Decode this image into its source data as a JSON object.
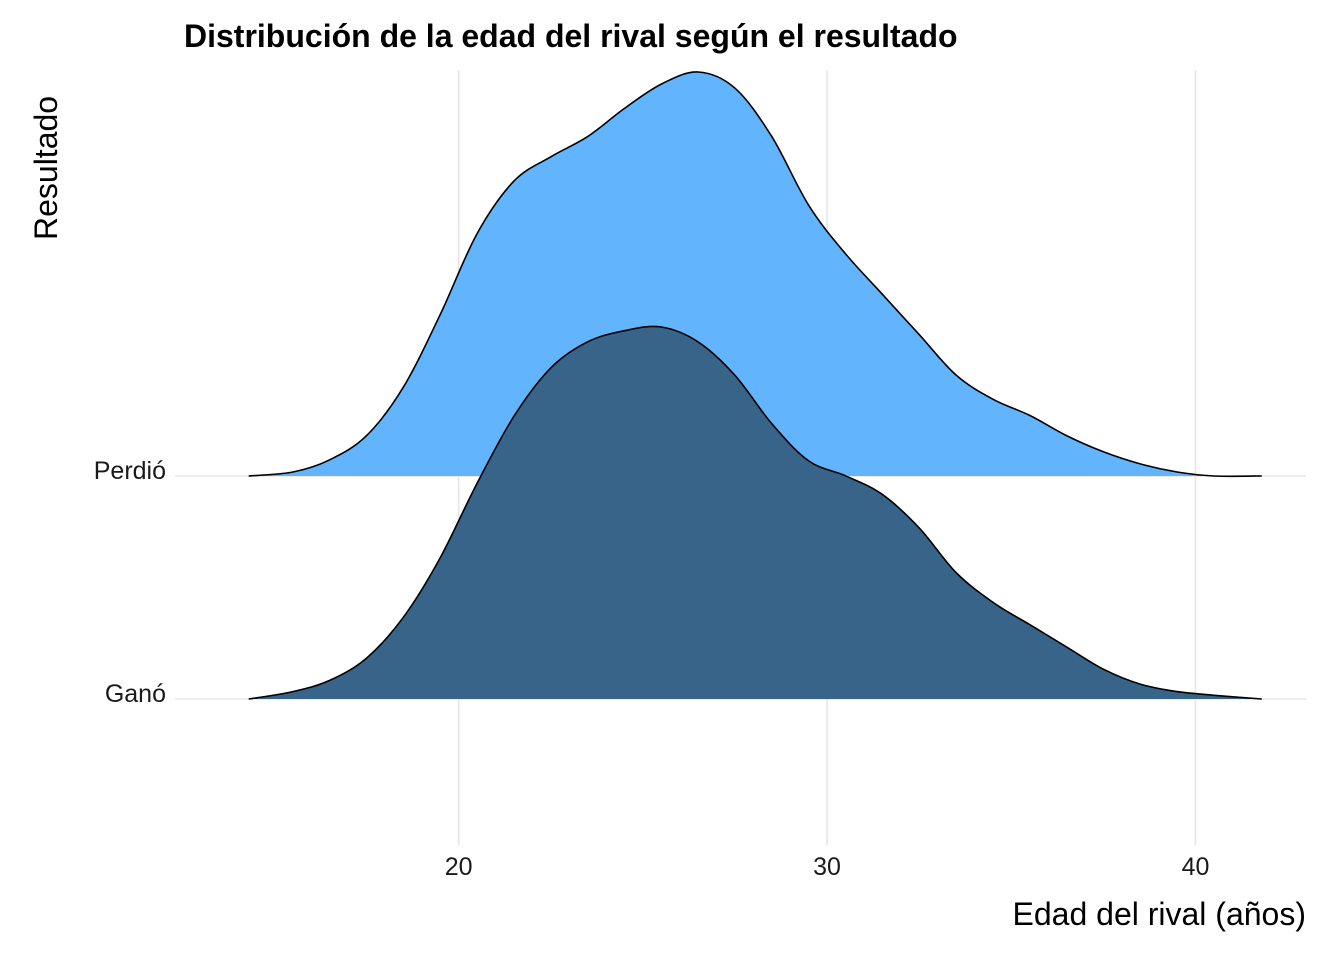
{
  "chart_data": {
    "type": "area",
    "title": "Distribución de la edad del rival según el resultado",
    "xlabel": "Edad del rival (años)",
    "ylabel": "Resultado",
    "xlim": [
      12.3,
      43.0
    ],
    "x_ticks": [
      20,
      30,
      40
    ],
    "x_tick_labels": [
      "20",
      "30",
      "40"
    ],
    "categories": [
      "Ganó",
      "Perdió"
    ],
    "grid": true,
    "legend": "none",
    "series": [
      {
        "name": "Ganó",
        "color": "#386489",
        "x": [
          14.3,
          15.5,
          16.5,
          17.5,
          18.5,
          19.5,
          20.5,
          21.5,
          22.5,
          23.5,
          24.5,
          25.5,
          26.5,
          27.5,
          28.5,
          29.5,
          30.5,
          31.5,
          32.5,
          33.5,
          34.5,
          35.5,
          36.5,
          37.5,
          38.5,
          39.5,
          40.5,
          41.8
        ],
        "y": [
          0.0,
          0.02,
          0.05,
          0.11,
          0.22,
          0.38,
          0.58,
          0.76,
          0.89,
          0.96,
          0.99,
          1.0,
          0.96,
          0.87,
          0.74,
          0.64,
          0.6,
          0.55,
          0.46,
          0.34,
          0.26,
          0.2,
          0.14,
          0.08,
          0.04,
          0.02,
          0.01,
          0.0
        ]
      },
      {
        "name": "Perdió",
        "color": "#62B5FD",
        "x": [
          14.3,
          15.5,
          16.5,
          17.5,
          18.5,
          19.5,
          20.5,
          21.5,
          22.5,
          23.5,
          24.5,
          25.5,
          26.5,
          27.5,
          28.5,
          29.5,
          30.5,
          31.5,
          32.5,
          33.5,
          34.5,
          35.5,
          36.5,
          37.5,
          38.5,
          39.5,
          40.5,
          41.8
        ],
        "y": [
          0.0,
          0.01,
          0.04,
          0.1,
          0.22,
          0.4,
          0.6,
          0.73,
          0.79,
          0.84,
          0.91,
          0.97,
          1.0,
          0.96,
          0.84,
          0.67,
          0.55,
          0.45,
          0.35,
          0.25,
          0.19,
          0.15,
          0.1,
          0.06,
          0.03,
          0.01,
          0.0,
          0.0
        ]
      }
    ]
  }
}
